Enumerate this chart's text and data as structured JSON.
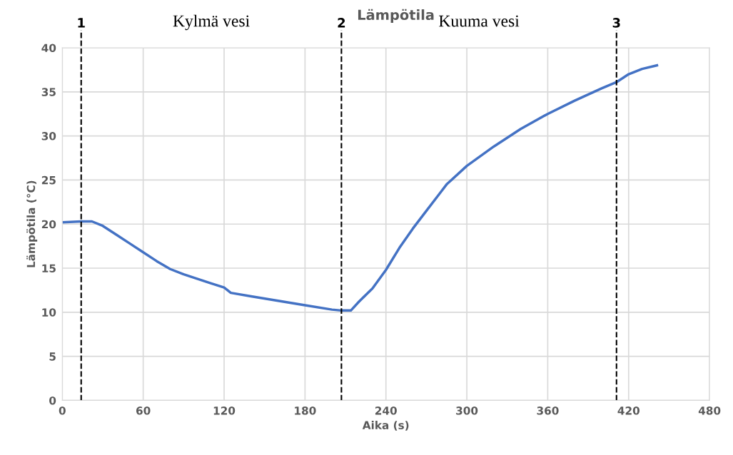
{
  "chart_data": {
    "type": "line",
    "title": "Lämpötila",
    "xlabel": "Aika (s)",
    "ylabel": "Lämpötila (°C)",
    "x": [
      0,
      14,
      22,
      30,
      40,
      50,
      60,
      70,
      80,
      90,
      100,
      110,
      120,
      125,
      140,
      160,
      180,
      200,
      207,
      214,
      220,
      230,
      240,
      250,
      260,
      270,
      280,
      285,
      300,
      320,
      340,
      360,
      380,
      400,
      411,
      420,
      430,
      441
    ],
    "series": [
      {
        "color": "#4472c4",
        "values": [
          20.2,
          20.3,
          20.3,
          19.8,
          18.8,
          17.8,
          16.8,
          15.8,
          14.9,
          14.3,
          13.8,
          13.3,
          12.8,
          12.2,
          11.8,
          11.3,
          10.8,
          10.3,
          10.2,
          10.2,
          11.2,
          12.7,
          14.8,
          17.3,
          19.5,
          21.5,
          23.5,
          24.5,
          26.6,
          28.8,
          30.8,
          32.5,
          34.0,
          35.4,
          36.1,
          37.0,
          37.6,
          38.0
        ]
      }
    ],
    "xlim": [
      0,
      480
    ],
    "ylim": [
      0,
      40
    ],
    "xticks": [
      0,
      60,
      120,
      180,
      240,
      300,
      360,
      420,
      480
    ],
    "yticks": [
      0,
      5,
      10,
      15,
      20,
      25,
      30,
      35,
      40
    ],
    "ref_lines": [
      {
        "axis": "x",
        "value": 14,
        "color": "#000000",
        "line_style": "dashed"
      },
      {
        "axis": "x",
        "value": 207,
        "color": "#000000",
        "line_style": "dashed"
      },
      {
        "axis": "x",
        "value": 411,
        "color": "#000000",
        "line_style": "dashed"
      }
    ],
    "annotations": [
      "1",
      "Kylmä vesi",
      "2",
      "Kuuma vesi",
      "3"
    ],
    "grid": true,
    "marker": "none",
    "line_style": "solid"
  }
}
